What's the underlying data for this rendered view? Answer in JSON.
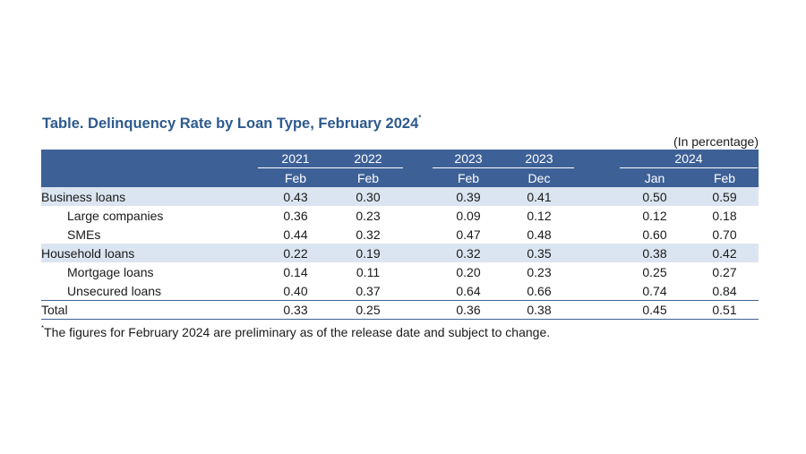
{
  "title": {
    "text": "Table. Delinquency Rate by Loan Type, February 2024",
    "mark": "*"
  },
  "unit_note": "(In percentage)",
  "header": {
    "years": [
      "2021",
      "2022",
      "2023",
      "2023",
      "2024"
    ],
    "months": [
      "Feb",
      "Feb",
      "Feb",
      "Dec",
      "Jan",
      "Feb"
    ]
  },
  "rows": [
    {
      "label": "Business loans",
      "values": [
        "0.43",
        "0.30",
        "0.39",
        "0.41",
        "0.50",
        "0.59"
      ]
    },
    {
      "label": "Large companies",
      "values": [
        "0.36",
        "0.23",
        "0.09",
        "0.12",
        "0.12",
        "0.18"
      ]
    },
    {
      "label": "SMEs",
      "values": [
        "0.44",
        "0.32",
        "0.47",
        "0.48",
        "0.60",
        "0.70"
      ]
    },
    {
      "label": "Household loans",
      "values": [
        "0.22",
        "0.19",
        "0.32",
        "0.35",
        "0.38",
        "0.42"
      ]
    },
    {
      "label": "Mortgage loans",
      "values": [
        "0.14",
        "0.11",
        "0.20",
        "0.23",
        "0.25",
        "0.27"
      ]
    },
    {
      "label": "Unsecured loans",
      "values": [
        "0.40",
        "0.37",
        "0.64",
        "0.66",
        "0.74",
        "0.84"
      ]
    },
    {
      "label": "Total",
      "values": [
        "0.33",
        "0.25",
        "0.36",
        "0.38",
        "0.45",
        "0.51"
      ]
    }
  ],
  "footnote": {
    "mark": "*",
    "text": "The figures for February 2024 are preliminary as of the release date and subject to change."
  },
  "colors": {
    "title": "#2d5a8e",
    "header_bg": "#3d6197",
    "row_shade": "#dbe5f1"
  }
}
